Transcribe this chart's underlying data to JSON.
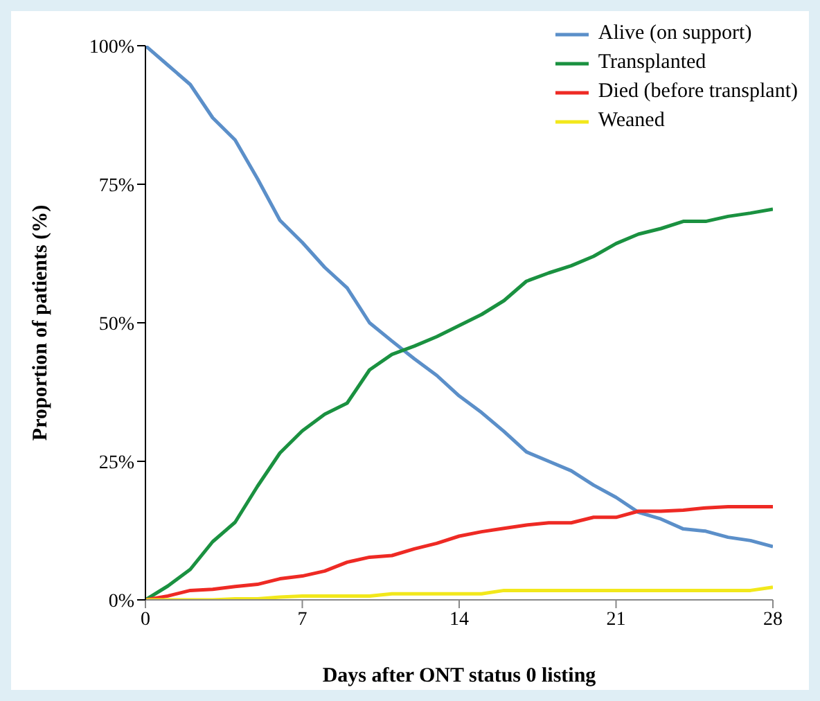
{
  "chart_data": {
    "type": "line",
    "xlabel": "Days after ONT status 0 listing",
    "ylabel": "Proportion of patients (%)",
    "x": [
      0,
      1,
      2,
      3,
      4,
      5,
      6,
      7,
      8,
      9,
      10,
      11,
      12,
      13,
      14,
      15,
      16,
      17,
      18,
      19,
      20,
      21,
      22,
      23,
      24,
      25,
      26,
      27,
      28
    ],
    "series": [
      {
        "name": "Alive (on support)",
        "color": "#5b8fc9",
        "values": [
          100,
          96.5,
          93,
          87,
          83,
          76,
          68.5,
          64.5,
          60,
          56.3,
          50,
          46.7,
          43.5,
          40.5,
          36.8,
          33.8,
          30.4,
          26.7,
          25,
          23.3,
          20.7,
          18.5,
          15.8,
          14.6,
          12.8,
          12.4,
          11.3,
          10.7,
          9.6
        ]
      },
      {
        "name": "Transplanted",
        "color": "#1a9140",
        "values": [
          0,
          2.5,
          5.5,
          10.5,
          14,
          20.5,
          26.5,
          30.5,
          33.5,
          35.5,
          41.5,
          44.3,
          45.8,
          47.5,
          49.5,
          51.5,
          54,
          57.5,
          59,
          60.3,
          62,
          64.3,
          66,
          67,
          68.3,
          68.3,
          69.2,
          69.8,
          70.5
        ]
      },
      {
        "name": "Died (before transplant)",
        "color": "#ee2a24",
        "values": [
          0,
          0.7,
          1.7,
          1.9,
          2.4,
          2.8,
          3.8,
          4.3,
          5.2,
          6.8,
          7.7,
          8,
          9.2,
          10.2,
          11.5,
          12.3,
          12.9,
          13.5,
          13.9,
          13.9,
          14.9,
          14.9,
          16,
          16,
          16.2,
          16.6,
          16.8,
          16.8,
          16.8
        ]
      },
      {
        "name": "Weaned",
        "color": "#f2e81b",
        "values": [
          0,
          0,
          0,
          0,
          0.2,
          0.2,
          0.5,
          0.7,
          0.7,
          0.7,
          0.7,
          1.1,
          1.1,
          1.1,
          1.1,
          1.1,
          1.7,
          1.7,
          1.7,
          1.7,
          1.7,
          1.7,
          1.7,
          1.7,
          1.7,
          1.7,
          1.7,
          1.7,
          2.3
        ]
      }
    ],
    "xlim": [
      0,
      28
    ],
    "xticks": [
      0,
      7,
      14,
      21,
      28
    ],
    "ylim": [
      0,
      100
    ],
    "yticks": [
      {
        "value": 0,
        "label": "0%"
      },
      {
        "value": 25,
        "label": "25%"
      },
      {
        "value": 50,
        "label": "50%"
      },
      {
        "value": 75,
        "label": "75%"
      },
      {
        "value": 100,
        "label": "100%"
      }
    ],
    "grid": false,
    "legend": "top right",
    "marker": "none",
    "line_style": "solid"
  }
}
